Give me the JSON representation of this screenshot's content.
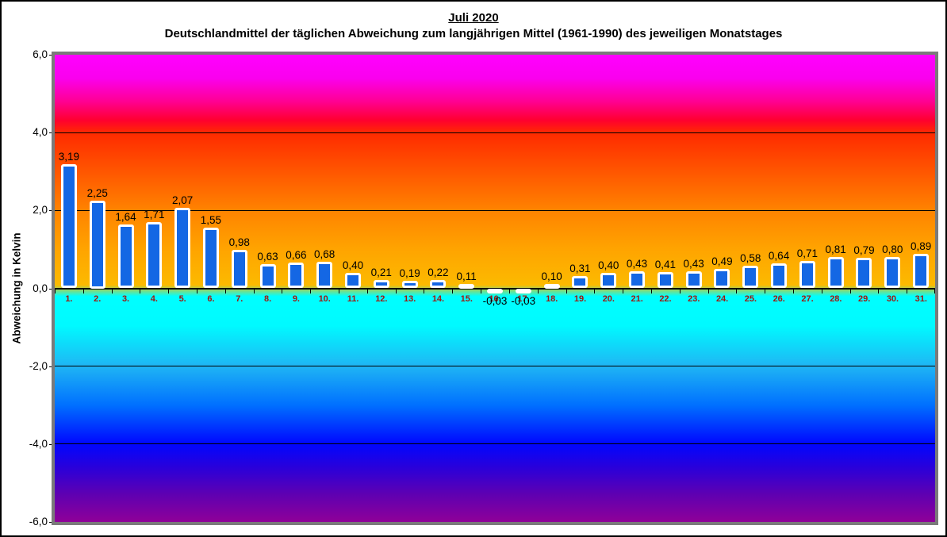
{
  "title": "Juli 2020",
  "subtitle": "Deutschlandmittel der täglichen Abweichung zum langjährigen Mittel (1961-1990) des jeweiligen Monatstages",
  "chart_data": {
    "type": "bar",
    "title": "Juli 2020",
    "subtitle": "Deutschlandmittel der täglichen Abweichung zum langjährigen Mittel (1961-1990) des jeweiligen Monatstages",
    "xlabel": "",
    "ylabel": "Abweichung in Kelvin",
    "ylim": [
      -6.0,
      6.0
    ],
    "grid": true,
    "legend": false,
    "categories": [
      "1.",
      "2.",
      "3.",
      "4.",
      "5.",
      "6.",
      "7.",
      "8.",
      "9.",
      "10.",
      "11.",
      "12.",
      "13.",
      "14.",
      "15.",
      "16.",
      "17.",
      "18.",
      "19.",
      "20.",
      "21.",
      "22.",
      "23.",
      "24.",
      "25.",
      "26.",
      "27.",
      "28.",
      "29.",
      "30.",
      "31."
    ],
    "values": [
      3.19,
      2.25,
      1.64,
      1.71,
      2.07,
      1.55,
      0.98,
      0.63,
      0.66,
      0.68,
      0.4,
      0.21,
      0.19,
      0.22,
      0.11,
      -0.03,
      -0.03,
      0.1,
      0.31,
      0.4,
      0.43,
      0.41,
      0.43,
      0.49,
      0.58,
      0.64,
      0.71,
      0.81,
      0.79,
      0.8,
      0.89
    ],
    "value_labels": [
      "3,19",
      "2,25",
      "1,64",
      "1,71",
      "2,07",
      "1,55",
      "0,98",
      "0,63",
      "0,66",
      "0,68",
      "0,40",
      "0,21",
      "0,19",
      "0,22",
      "0,11",
      "-0,03",
      "-0,03",
      "0,10",
      "0,31",
      "0,40",
      "0,43",
      "0,41",
      "0,43",
      "0,49",
      "0,58",
      "0,64",
      "0,71",
      "0,81",
      "0,79",
      "0,80",
      "0,89"
    ],
    "yticks": [
      {
        "value": 6,
        "label": "6,0"
      },
      {
        "value": 4,
        "label": "4,0"
      },
      {
        "value": 2,
        "label": "2,0"
      },
      {
        "value": 0,
        "label": "0,0"
      },
      {
        "value": -2,
        "label": "-2,0"
      },
      {
        "value": -4,
        "label": "-4,0"
      },
      {
        "value": -6,
        "label": "-6,0"
      }
    ],
    "colors": {
      "bar_fill": "#1467E4",
      "bar_border": "#FFFFFF",
      "value_label": "#000000",
      "category_label": "#A01810",
      "axis_line": "#000000",
      "gridline": "#000000",
      "plot_frame": "#7A7A7A",
      "page_border": "#000000",
      "gradient_stops": [
        [
          "0%",
          "#FF00FF"
        ],
        [
          "5%",
          "#FA00EE"
        ],
        [
          "10%",
          "#FF0092"
        ],
        [
          "14%",
          "#FF0030"
        ],
        [
          "16.7%",
          "#FF2A00"
        ],
        [
          "25%",
          "#FF5600"
        ],
        [
          "33.3%",
          "#FF8300"
        ],
        [
          "41.7%",
          "#FFA400"
        ],
        [
          "49.3%",
          "#FCBA00"
        ],
        [
          "51.7%",
          "#00FFFF"
        ],
        [
          "58%",
          "#00FAFF"
        ],
        [
          "66.7%",
          "#1FB5F4"
        ],
        [
          "75%",
          "#0070FF"
        ],
        [
          "83.3%",
          "#0006FF"
        ],
        [
          "88.5%",
          "#2B00D9"
        ],
        [
          "94%",
          "#5E00B2"
        ],
        [
          "100%",
          "#8F0098"
        ]
      ]
    }
  }
}
